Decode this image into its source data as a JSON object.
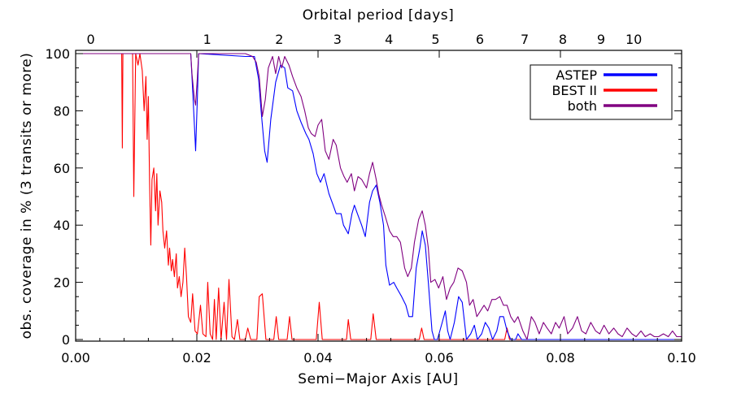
{
  "chart_data": {
    "type": "line",
    "xlabel": "Semi−Major Axis [AU]",
    "ylabel": "obs. coverage in % (3 transits or more)",
    "top_axis_label": "Orbital period [days]",
    "xlim": [
      0.0,
      0.1
    ],
    "ylim": [
      0,
      100
    ],
    "x_ticks": [
      0.0,
      0.02,
      0.04,
      0.06,
      0.08,
      0.1
    ],
    "x_tick_labels": [
      "0.00",
      "0.02",
      "0.04",
      "0.06",
      "0.08",
      "0.10"
    ],
    "y_ticks": [
      0,
      20,
      40,
      60,
      80,
      100
    ],
    "y_tick_labels": [
      "0",
      "20",
      "40",
      "60",
      "80",
      "100"
    ],
    "top_ticks": [
      {
        "label": "0",
        "a": 0.0025
      },
      {
        "label": "1",
        "a": 0.0217
      },
      {
        "label": "2",
        "a": 0.0336
      },
      {
        "label": "3",
        "a": 0.0432
      },
      {
        "label": "4",
        "a": 0.0517
      },
      {
        "label": "5",
        "a": 0.0594
      },
      {
        "label": "6",
        "a": 0.0667
      },
      {
        "label": "7",
        "a": 0.0741
      },
      {
        "label": "8",
        "a": 0.0804
      },
      {
        "label": "9",
        "a": 0.0867
      },
      {
        "label": "10",
        "a": 0.0921
      }
    ],
    "legend_position": "top-right",
    "grid": false,
    "series": [
      {
        "name": "ASTEP",
        "color": "#0000ff",
        "points": [
          [
            0.0,
            100
          ],
          [
            0.019,
            100
          ],
          [
            0.0192,
            92
          ],
          [
            0.0196,
            75
          ],
          [
            0.0198,
            66
          ],
          [
            0.0201,
            85
          ],
          [
            0.0203,
            100
          ],
          [
            0.028,
            99
          ],
          [
            0.0295,
            99
          ],
          [
            0.0302,
            91
          ],
          [
            0.0306,
            80
          ],
          [
            0.0312,
            66
          ],
          [
            0.0316,
            62
          ],
          [
            0.0322,
            77
          ],
          [
            0.033,
            90
          ],
          [
            0.0338,
            96
          ],
          [
            0.0345,
            95
          ],
          [
            0.035,
            88
          ],
          [
            0.0358,
            87
          ],
          [
            0.0365,
            80
          ],
          [
            0.0372,
            76
          ],
          [
            0.038,
            72
          ],
          [
            0.0385,
            70
          ],
          [
            0.0392,
            65
          ],
          [
            0.0398,
            58
          ],
          [
            0.0404,
            55
          ],
          [
            0.041,
            58
          ],
          [
            0.0418,
            51
          ],
          [
            0.0425,
            47
          ],
          [
            0.043,
            44
          ],
          [
            0.0438,
            44
          ],
          [
            0.0442,
            40
          ],
          [
            0.045,
            37
          ],
          [
            0.0456,
            44
          ],
          [
            0.046,
            47
          ],
          [
            0.0465,
            44
          ],
          [
            0.0472,
            40
          ],
          [
            0.0478,
            36
          ],
          [
            0.0485,
            48
          ],
          [
            0.049,
            52
          ],
          [
            0.0496,
            54
          ],
          [
            0.0502,
            48
          ],
          [
            0.0508,
            40
          ],
          [
            0.0512,
            26
          ],
          [
            0.0518,
            19
          ],
          [
            0.0525,
            20
          ],
          [
            0.053,
            18
          ],
          [
            0.0538,
            15
          ],
          [
            0.0545,
            12
          ],
          [
            0.055,
            8
          ],
          [
            0.0556,
            8
          ],
          [
            0.0562,
            25
          ],
          [
            0.0568,
            32
          ],
          [
            0.0572,
            38
          ],
          [
            0.0577,
            33
          ],
          [
            0.0582,
            20
          ],
          [
            0.0588,
            3
          ],
          [
            0.0592,
            0
          ],
          [
            0.0597,
            0
          ],
          [
            0.0605,
            6
          ],
          [
            0.061,
            10
          ],
          [
            0.0614,
            3
          ],
          [
            0.0618,
            0
          ],
          [
            0.0625,
            6
          ],
          [
            0.0632,
            15
          ],
          [
            0.0638,
            13
          ],
          [
            0.0645,
            0
          ],
          [
            0.0652,
            2
          ],
          [
            0.0658,
            5
          ],
          [
            0.0663,
            0
          ],
          [
            0.067,
            2
          ],
          [
            0.0676,
            6
          ],
          [
            0.0682,
            4
          ],
          [
            0.0688,
            0
          ],
          [
            0.0695,
            3
          ],
          [
            0.07,
            8
          ],
          [
            0.0706,
            8
          ],
          [
            0.0712,
            3
          ],
          [
            0.0718,
            0
          ],
          [
            0.0726,
            0
          ],
          [
            0.073,
            2
          ],
          [
            0.0736,
            0
          ],
          [
            0.1,
            0
          ]
        ]
      },
      {
        "name": "BEST II",
        "color": "#ff0000",
        "points": [
          [
            0.0,
            100
          ],
          [
            0.0076,
            100
          ],
          [
            0.0077,
            67
          ],
          [
            0.0078,
            100
          ],
          [
            0.0094,
            100
          ],
          [
            0.0096,
            50
          ],
          [
            0.0099,
            100
          ],
          [
            0.0103,
            96
          ],
          [
            0.0106,
            100
          ],
          [
            0.011,
            94
          ],
          [
            0.0113,
            80
          ],
          [
            0.0116,
            92
          ],
          [
            0.0118,
            70
          ],
          [
            0.012,
            85
          ],
          [
            0.0122,
            55
          ],
          [
            0.0124,
            33
          ],
          [
            0.0126,
            56
          ],
          [
            0.0129,
            60
          ],
          [
            0.0132,
            45
          ],
          [
            0.0134,
            58
          ],
          [
            0.0136,
            40
          ],
          [
            0.0139,
            52
          ],
          [
            0.0142,
            48
          ],
          [
            0.0144,
            38
          ],
          [
            0.0147,
            32
          ],
          [
            0.015,
            38
          ],
          [
            0.0153,
            26
          ],
          [
            0.0155,
            32
          ],
          [
            0.0158,
            24
          ],
          [
            0.016,
            28
          ],
          [
            0.0163,
            22
          ],
          [
            0.0166,
            30
          ],
          [
            0.0168,
            18
          ],
          [
            0.0171,
            22
          ],
          [
            0.0174,
            15
          ],
          [
            0.0177,
            20
          ],
          [
            0.018,
            32
          ],
          [
            0.0183,
            22
          ],
          [
            0.0186,
            8
          ],
          [
            0.019,
            6
          ],
          [
            0.0193,
            16
          ],
          [
            0.0197,
            3
          ],
          [
            0.0201,
            2
          ],
          [
            0.0206,
            12
          ],
          [
            0.021,
            2
          ],
          [
            0.0215,
            1
          ],
          [
            0.0218,
            20
          ],
          [
            0.0222,
            2
          ],
          [
            0.0226,
            0
          ],
          [
            0.0229,
            14
          ],
          [
            0.0232,
            0
          ],
          [
            0.0236,
            18
          ],
          [
            0.024,
            0
          ],
          [
            0.0245,
            13
          ],
          [
            0.0249,
            0
          ],
          [
            0.0253,
            21
          ],
          [
            0.0258,
            1
          ],
          [
            0.0262,
            0
          ],
          [
            0.0267,
            7
          ],
          [
            0.0271,
            0
          ],
          [
            0.028,
            0
          ],
          [
            0.0284,
            4
          ],
          [
            0.0289,
            0
          ],
          [
            0.0299,
            0
          ],
          [
            0.0303,
            15
          ],
          [
            0.0308,
            16
          ],
          [
            0.0314,
            0
          ],
          [
            0.0327,
            0
          ],
          [
            0.0331,
            8
          ],
          [
            0.0335,
            0
          ],
          [
            0.0349,
            0
          ],
          [
            0.0353,
            8
          ],
          [
            0.0357,
            0
          ],
          [
            0.0397,
            0
          ],
          [
            0.0402,
            13
          ],
          [
            0.0407,
            0
          ],
          [
            0.0447,
            0
          ],
          [
            0.045,
            7
          ],
          [
            0.0454,
            0
          ],
          [
            0.0487,
            0
          ],
          [
            0.0491,
            9
          ],
          [
            0.0496,
            0
          ],
          [
            0.0567,
            0
          ],
          [
            0.0571,
            4
          ],
          [
            0.0575,
            0
          ],
          [
            0.0708,
            0
          ],
          [
            0.0712,
            4
          ],
          [
            0.0716,
            0
          ],
          [
            0.1,
            0
          ]
        ]
      },
      {
        "name": "both",
        "color": "#800080",
        "points": [
          [
            0.0,
            100
          ],
          [
            0.019,
            100
          ],
          [
            0.0192,
            93
          ],
          [
            0.0196,
            84
          ],
          [
            0.0198,
            82
          ],
          [
            0.0201,
            92
          ],
          [
            0.0203,
            100
          ],
          [
            0.028,
            100
          ],
          [
            0.0292,
            99
          ],
          [
            0.0298,
            97
          ],
          [
            0.0303,
            92
          ],
          [
            0.0308,
            78
          ],
          [
            0.0313,
            84
          ],
          [
            0.0318,
            95
          ],
          [
            0.0325,
            99
          ],
          [
            0.033,
            93
          ],
          [
            0.0335,
            99
          ],
          [
            0.034,
            95
          ],
          [
            0.0345,
            99
          ],
          [
            0.0352,
            96
          ],
          [
            0.0358,
            92
          ],
          [
            0.0365,
            88
          ],
          [
            0.0372,
            85
          ],
          [
            0.0378,
            80
          ],
          [
            0.0384,
            74
          ],
          [
            0.0389,
            72
          ],
          [
            0.0395,
            71
          ],
          [
            0.04,
            75
          ],
          [
            0.0406,
            77
          ],
          [
            0.0412,
            66
          ],
          [
            0.0418,
            63
          ],
          [
            0.0425,
            70
          ],
          [
            0.043,
            68
          ],
          [
            0.0437,
            60
          ],
          [
            0.0443,
            57
          ],
          [
            0.0448,
            55
          ],
          [
            0.0455,
            58
          ],
          [
            0.046,
            52
          ],
          [
            0.0466,
            57
          ],
          [
            0.0472,
            56
          ],
          [
            0.048,
            53
          ],
          [
            0.0485,
            58
          ],
          [
            0.049,
            62
          ],
          [
            0.0496,
            56
          ],
          [
            0.05,
            51
          ],
          [
            0.0505,
            47
          ],
          [
            0.0511,
            43
          ],
          [
            0.0518,
            38
          ],
          [
            0.0524,
            36
          ],
          [
            0.053,
            36
          ],
          [
            0.0536,
            34
          ],
          [
            0.0543,
            25
          ],
          [
            0.0548,
            22
          ],
          [
            0.0554,
            25
          ],
          [
            0.0559,
            34
          ],
          [
            0.0566,
            42
          ],
          [
            0.0572,
            45
          ],
          [
            0.0577,
            40
          ],
          [
            0.0582,
            32
          ],
          [
            0.0586,
            20
          ],
          [
            0.0593,
            21
          ],
          [
            0.0599,
            18
          ],
          [
            0.0606,
            22
          ],
          [
            0.0612,
            14
          ],
          [
            0.0618,
            18
          ],
          [
            0.0624,
            20
          ],
          [
            0.0631,
            25
          ],
          [
            0.0638,
            24
          ],
          [
            0.0645,
            20
          ],
          [
            0.065,
            12
          ],
          [
            0.0656,
            14
          ],
          [
            0.0662,
            8
          ],
          [
            0.0668,
            10
          ],
          [
            0.0674,
            12
          ],
          [
            0.068,
            10
          ],
          [
            0.0687,
            14
          ],
          [
            0.0693,
            14
          ],
          [
            0.07,
            15
          ],
          [
            0.0706,
            12
          ],
          [
            0.0712,
            12
          ],
          [
            0.0718,
            8
          ],
          [
            0.0724,
            6
          ],
          [
            0.073,
            8
          ],
          [
            0.0738,
            3
          ],
          [
            0.0745,
            0
          ],
          [
            0.0752,
            8
          ],
          [
            0.0758,
            6
          ],
          [
            0.0765,
            2
          ],
          [
            0.0772,
            6
          ],
          [
            0.0778,
            4
          ],
          [
            0.0785,
            2
          ],
          [
            0.0792,
            6
          ],
          [
            0.0798,
            4
          ],
          [
            0.0806,
            8
          ],
          [
            0.0812,
            2
          ],
          [
            0.082,
            4
          ],
          [
            0.0828,
            8
          ],
          [
            0.0835,
            3
          ],
          [
            0.0842,
            2
          ],
          [
            0.085,
            6
          ],
          [
            0.0858,
            3
          ],
          [
            0.0865,
            2
          ],
          [
            0.0872,
            5
          ],
          [
            0.088,
            2
          ],
          [
            0.0888,
            4
          ],
          [
            0.0895,
            2
          ],
          [
            0.0902,
            1
          ],
          [
            0.091,
            4
          ],
          [
            0.0918,
            2
          ],
          [
            0.0925,
            1
          ],
          [
            0.0933,
            3
          ],
          [
            0.094,
            1
          ],
          [
            0.0948,
            2
          ],
          [
            0.0955,
            1
          ],
          [
            0.0962,
            1
          ],
          [
            0.097,
            2
          ],
          [
            0.0978,
            1
          ],
          [
            0.0985,
            3
          ],
          [
            0.0992,
            1
          ],
          [
            0.1,
            1
          ]
        ]
      }
    ]
  }
}
